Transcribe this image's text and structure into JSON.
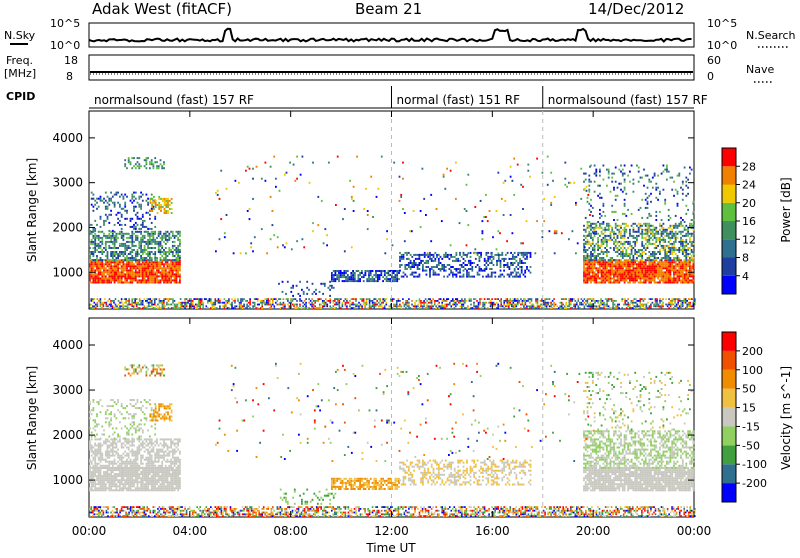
{
  "header": {
    "title": "Adak West (fitACF)",
    "beam": "Beam 21",
    "date": "14/Dec/2012"
  },
  "top_panels": {
    "nsky_label": "N.Sky",
    "nsky_ticks": [
      "10^5",
      "10^0"
    ],
    "nsearch_label": "N.Search",
    "nsearch_ticks": [
      "10^5",
      "10^0"
    ],
    "freq_label": "Freq.",
    "freq_unit": "[MHz]",
    "freq_ticks": [
      "18",
      "8"
    ],
    "nave_label": "Nave",
    "nave_ticks": [
      "60",
      "0"
    ],
    "cpid_label": "CPID",
    "cpid_segments": [
      {
        "label": "normalsound (fast) 157 RF",
        "start_hr": 0,
        "end_hr": 12
      },
      {
        "label": "normal (fast) 151 RF",
        "start_hr": 12,
        "end_hr": 18
      },
      {
        "label": "normalsound (fast) 157 RF",
        "start_hr": 18,
        "end_hr": 24
      }
    ]
  },
  "colors": {
    "power": [
      "#0000ff",
      "#1f3fa0",
      "#2f6f8f",
      "#3f8f5f",
      "#5fc040",
      "#f0c800",
      "#f08000",
      "#ff0000"
    ],
    "velocity": [
      "#ff0000",
      "#f05000",
      "#f08c00",
      "#f0c040",
      "#c8c8c0",
      "#90d060",
      "#40a040",
      "#2f6f8f",
      "#0000ff"
    ]
  },
  "chart_data": [
    {
      "type": "heatmap",
      "name": "power",
      "ylabel": "Slant Range [km]",
      "ylim": [
        180,
        4600
      ],
      "y_ticks": [
        1000,
        2000,
        3000,
        4000
      ],
      "x_ticks": [
        "00:00",
        "04:00",
        "08:00",
        "12:00",
        "16:00",
        "20:00",
        "00:00"
      ],
      "xlim_hours": [
        0,
        24
      ],
      "colorbar": {
        "label": "Power [dB]",
        "ticks": [
          "4",
          "8",
          "12",
          "16",
          "20",
          "24",
          "28"
        ],
        "range": [
          0,
          32
        ]
      }
    },
    {
      "type": "heatmap",
      "name": "velocity",
      "ylabel": "Slant Range [km]",
      "ylim": [
        180,
        4600
      ],
      "y_ticks": [
        1000,
        2000,
        3000,
        4000
      ],
      "x_ticks": [
        "00:00",
        "04:00",
        "08:00",
        "12:00",
        "16:00",
        "20:00",
        "00:00"
      ],
      "xlim_hours": [
        0,
        24
      ],
      "xlabel": "Time UT",
      "colorbar": {
        "label": "Velocity [m s^-1]",
        "ticks": [
          "200",
          "100",
          "50",
          "15",
          "-15",
          "-50",
          "-100",
          "-200"
        ]
      }
    }
  ]
}
